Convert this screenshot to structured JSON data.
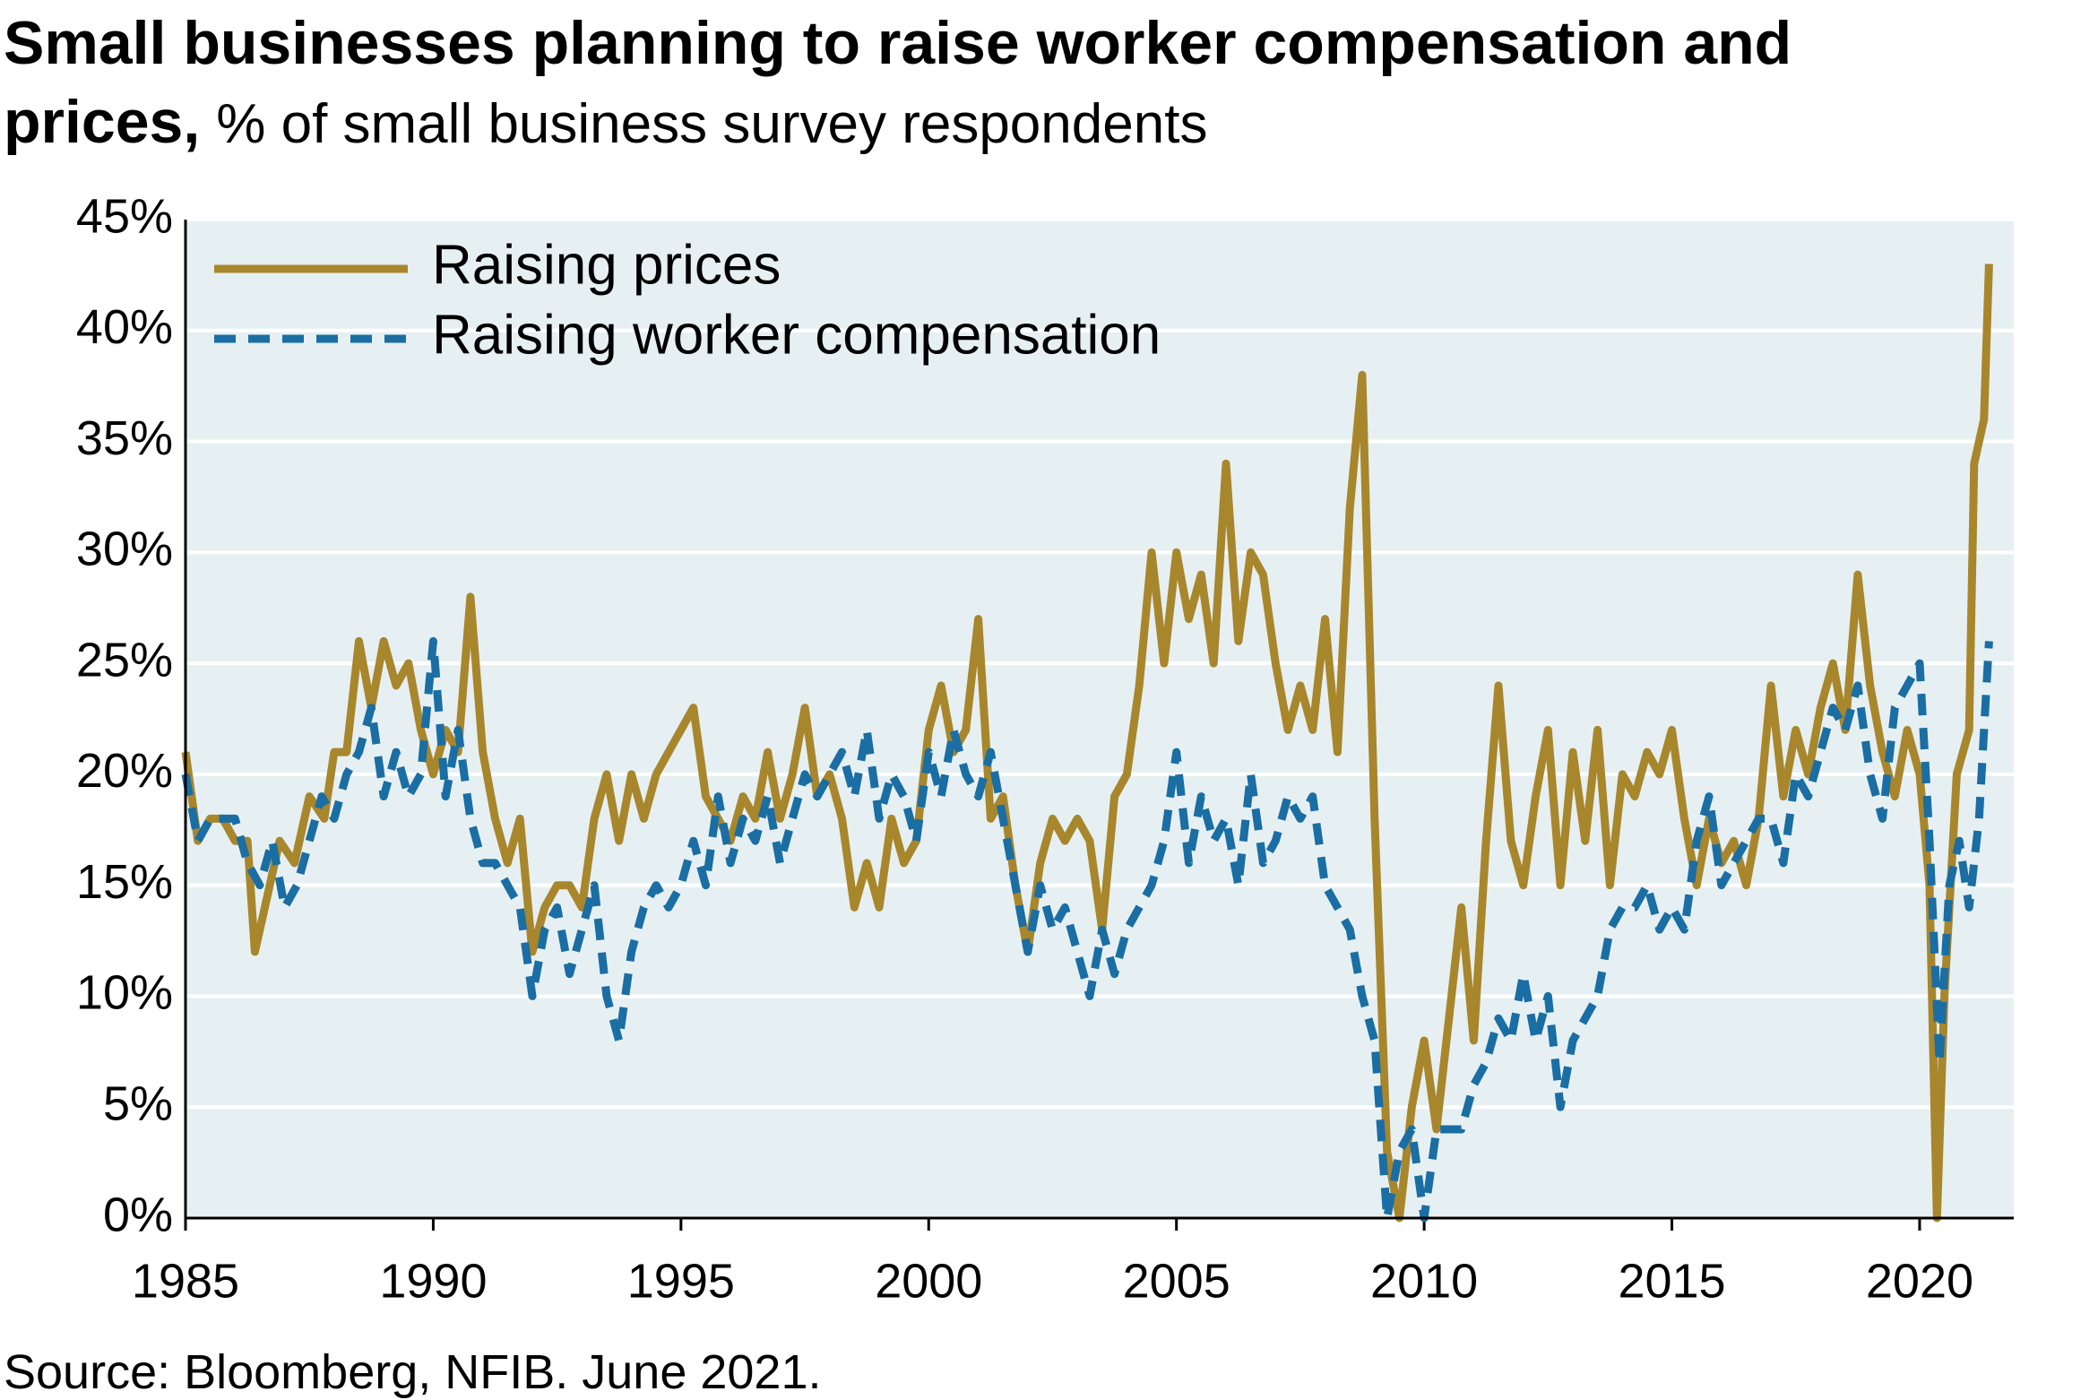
{
  "chart_data": {
    "type": "line",
    "title": "Small businesses planning to raise worker compensation and prices,",
    "subtitle": "% of small business survey respondents",
    "source": "Source: Bloomberg, NFIB. June 2021.",
    "xlim": [
      1985,
      2021.9
    ],
    "xticks": [
      1985,
      1990,
      1995,
      2000,
      2005,
      2010,
      2015,
      2020
    ],
    "ylim": [
      0,
      45
    ],
    "yticks": [
      {
        "value": 0,
        "label": "0%"
      },
      {
        "value": 5,
        "label": "5%"
      },
      {
        "value": 10,
        "label": "10%"
      },
      {
        "value": 15,
        "label": "15%"
      },
      {
        "value": 20,
        "label": "20%"
      },
      {
        "value": 25,
        "label": "25%"
      },
      {
        "value": 30,
        "label": "30%"
      },
      {
        "value": 35,
        "label": "35%"
      },
      {
        "value": 40,
        "label": "40%"
      },
      {
        "value": 45,
        "label": "45%"
      }
    ],
    "grid": true,
    "legend": "upper left",
    "series": [
      {
        "name": "Raising prices",
        "color": "#a8862c",
        "dash": false,
        "x": [
          1985.0,
          1985.25,
          1985.5,
          1985.75,
          1986.0,
          1986.25,
          1986.4,
          1986.6,
          1986.9,
          1987.2,
          1987.5,
          1987.8,
          1988.0,
          1988.25,
          1988.5,
          1988.75,
          1989.0,
          1989.25,
          1989.5,
          1989.75,
          1990.0,
          1990.25,
          1990.5,
          1990.75,
          1991.0,
          1991.25,
          1991.5,
          1991.75,
          1992.0,
          1992.25,
          1992.5,
          1992.75,
          1993.0,
          1993.25,
          1993.5,
          1993.75,
          1994.0,
          1994.25,
          1994.5,
          1994.75,
          1995.0,
          1995.25,
          1995.5,
          1995.75,
          1996.0,
          1996.25,
          1996.5,
          1996.75,
          1997.0,
          1997.25,
          1997.5,
          1997.75,
          1998.0,
          1998.25,
          1998.5,
          1998.75,
          1999.0,
          1999.25,
          1999.5,
          1999.75,
          2000.0,
          2000.25,
          2000.5,
          2000.75,
          2001.0,
          2001.25,
          2001.5,
          2001.75,
          2002.0,
          2002.25,
          2002.5,
          2002.75,
          2003.0,
          2003.25,
          2003.5,
          2003.75,
          2004.0,
          2004.25,
          2004.5,
          2004.75,
          2005.0,
          2005.25,
          2005.5,
          2005.75,
          2006.0,
          2006.25,
          2006.5,
          2006.75,
          2007.0,
          2007.25,
          2007.5,
          2007.75,
          2008.0,
          2008.25,
          2008.5,
          2008.75,
          2009.0,
          2009.25,
          2009.5,
          2009.75,
          2010.0,
          2010.25,
          2010.5,
          2010.75,
          2011.0,
          2011.25,
          2011.5,
          2011.75,
          2012.0,
          2012.25,
          2012.5,
          2012.75,
          2013.0,
          2013.25,
          2013.5,
          2013.75,
          2014.0,
          2014.25,
          2014.5,
          2014.75,
          2015.0,
          2015.25,
          2015.5,
          2015.75,
          2016.0,
          2016.25,
          2016.5,
          2016.75,
          2017.0,
          2017.25,
          2017.5,
          2017.75,
          2018.0,
          2018.25,
          2018.5,
          2018.75,
          2019.0,
          2019.25,
          2019.5,
          2019.75,
          2020.0,
          2020.2,
          2020.35,
          2020.5,
          2020.75,
          2021.0,
          2021.1,
          2021.3,
          2021.4
        ],
        "values": [
          21,
          17,
          18,
          18,
          17,
          17,
          12,
          14,
          17,
          16,
          19,
          18,
          21,
          21,
          26,
          23,
          26,
          24,
          25,
          22,
          20,
          22,
          21,
          28,
          21,
          18,
          16,
          18,
          12,
          14,
          15,
          15,
          14,
          18,
          20,
          17,
          20,
          18,
          20,
          21,
          22,
          23,
          19,
          18,
          17,
          19,
          18,
          21,
          18,
          20,
          23,
          19,
          20,
          18,
          14,
          16,
          14,
          18,
          16,
          17,
          22,
          24,
          21,
          22,
          27,
          18,
          19,
          15,
          12,
          16,
          18,
          17,
          18,
          17,
          13,
          19,
          20,
          24,
          30,
          25,
          30,
          27,
          29,
          25,
          34,
          26,
          30,
          29,
          25,
          22,
          24,
          22,
          27,
          21,
          32,
          38,
          18,
          3,
          0,
          5,
          8,
          4,
          9,
          14,
          8,
          17,
          24,
          17,
          15,
          19,
          22,
          15,
          21,
          17,
          22,
          15,
          20,
          19,
          21,
          20,
          22,
          18,
          15,
          18,
          16,
          17,
          15,
          18,
          24,
          19,
          22,
          20,
          23,
          25,
          22,
          29,
          24,
          21,
          19,
          22,
          20,
          15,
          0,
          10,
          20,
          22,
          34,
          36,
          43
        ]
      },
      {
        "name": "Raising worker compensation",
        "color": "#1a6ea3",
        "dash": true,
        "x": [
          1985.0,
          1985.25,
          1985.5,
          1985.75,
          1986.0,
          1986.25,
          1986.5,
          1986.75,
          1987.0,
          1987.25,
          1987.5,
          1987.75,
          1988.0,
          1988.25,
          1988.5,
          1988.75,
          1989.0,
          1989.25,
          1989.5,
          1989.75,
          1990.0,
          1990.25,
          1990.5,
          1990.75,
          1991.0,
          1991.25,
          1991.5,
          1991.75,
          1992.0,
          1992.25,
          1992.5,
          1992.75,
          1993.0,
          1993.25,
          1993.5,
          1993.75,
          1994.0,
          1994.25,
          1994.5,
          1994.75,
          1995.0,
          1995.25,
          1995.5,
          1995.75,
          1996.0,
          1996.25,
          1996.5,
          1996.75,
          1997.0,
          1997.25,
          1997.5,
          1997.75,
          1998.0,
          1998.25,
          1998.5,
          1998.75,
          1999.0,
          1999.25,
          1999.5,
          1999.75,
          2000.0,
          2000.25,
          2000.5,
          2000.75,
          2001.0,
          2001.25,
          2001.5,
          2001.75,
          2002.0,
          2002.25,
          2002.5,
          2002.75,
          2003.0,
          2003.25,
          2003.5,
          2003.75,
          2004.0,
          2004.25,
          2004.5,
          2004.75,
          2005.0,
          2005.25,
          2005.5,
          2005.75,
          2006.0,
          2006.25,
          2006.5,
          2006.75,
          2007.0,
          2007.25,
          2007.5,
          2007.75,
          2008.0,
          2008.25,
          2008.5,
          2008.75,
          2009.0,
          2009.25,
          2009.5,
          2009.75,
          2010.0,
          2010.25,
          2010.5,
          2010.75,
          2011.0,
          2011.25,
          2011.5,
          2011.75,
          2012.0,
          2012.25,
          2012.5,
          2012.75,
          2013.0,
          2013.25,
          2013.5,
          2013.75,
          2014.0,
          2014.25,
          2014.5,
          2014.75,
          2015.0,
          2015.25,
          2015.5,
          2015.75,
          2016.0,
          2016.25,
          2016.5,
          2016.75,
          2017.0,
          2017.25,
          2017.5,
          2017.75,
          2018.0,
          2018.25,
          2018.5,
          2018.75,
          2019.0,
          2019.25,
          2019.5,
          2019.75,
          2020.0,
          2020.2,
          2020.4,
          2020.6,
          2020.8,
          2021.0,
          2021.2,
          2021.4
        ],
        "values": [
          20,
          17,
          18,
          18,
          18,
          16,
          15,
          17,
          14,
          15,
          17,
          19,
          18,
          20,
          21,
          23,
          19,
          21,
          19,
          20,
          26,
          19,
          22,
          18,
          16,
          16,
          15,
          14,
          10,
          13,
          14,
          11,
          13,
          15,
          10,
          8,
          12,
          14,
          15,
          14,
          15,
          17,
          15,
          19,
          16,
          18,
          17,
          19,
          16,
          18,
          20,
          19,
          20,
          21,
          19,
          22,
          18,
          20,
          19,
          17,
          21,
          19,
          22,
          20,
          19,
          21,
          18,
          15,
          12,
          15,
          13,
          14,
          12,
          10,
          13,
          11,
          13,
          14,
          15,
          17,
          21,
          16,
          19,
          17,
          18,
          15,
          20,
          16,
          17,
          19,
          18,
          19,
          15,
          14,
          13,
          10,
          8,
          0,
          3,
          4,
          0,
          4,
          4,
          4,
          6,
          7,
          9,
          8,
          11,
          8,
          10,
          5,
          8,
          9,
          10,
          13,
          14,
          14,
          15,
          13,
          14,
          13,
          17,
          19,
          15,
          16,
          17,
          18,
          18,
          16,
          20,
          19,
          21,
          23,
          22,
          24,
          20,
          18,
          23,
          24,
          25,
          17,
          7,
          15,
          17,
          14,
          18,
          26
        ]
      }
    ]
  }
}
